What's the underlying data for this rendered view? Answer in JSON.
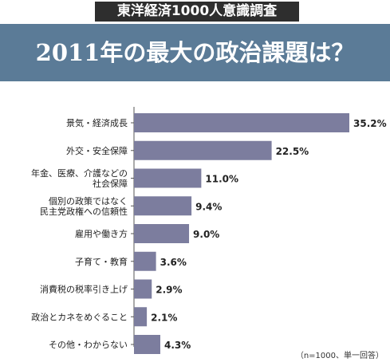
{
  "header": {
    "survey_tag": "東洋経済1000人意識調査",
    "title": "2011年の最大の政治課題は？"
  },
  "colors": {
    "banner": "#5b7b97",
    "bar": "#7c7d9e",
    "tag_bg": "#2e2e2e"
  },
  "chart_data": {
    "type": "bar",
    "orientation": "horizontal",
    "categories": [
      [
        "景気・経済成長"
      ],
      [
        "外交・安全保障"
      ],
      [
        "年金、医療、介護などの",
        "社会保障"
      ],
      [
        "個別の政策ではなく",
        "民主党政権への信頼性"
      ],
      [
        "雇用や働き方"
      ],
      [
        "子育て・教育"
      ],
      [
        "消費税の税率引き上げ"
      ],
      [
        "政治とカネをめぐること"
      ],
      [
        "その他・わからない"
      ]
    ],
    "values": [
      35.2,
      22.5,
      11.0,
      9.4,
      9.0,
      3.6,
      2.9,
      2.1,
      4.3
    ],
    "value_labels": [
      "35.2%",
      "22.5%",
      "11.0%",
      "9.4%",
      "9.0%",
      "3.6%",
      "2.9%",
      "2.1%",
      "4.3%"
    ],
    "unit": "%",
    "xlim": [
      0,
      35.2
    ],
    "grid": false
  },
  "footnote": "（n=1000、単一回答）"
}
